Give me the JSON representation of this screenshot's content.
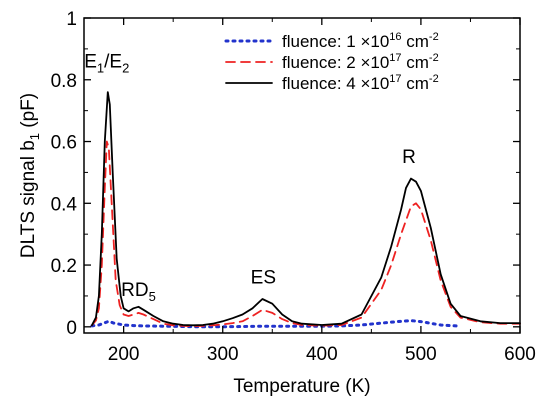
{
  "chart_data": {
    "type": "line",
    "title": "",
    "xlabel": "Temperature (K)",
    "ylabel": "DLTS signal b",
    "ylabel_sub": "1",
    "ylabel_unit": " (pF)",
    "xlim": [
      160,
      600
    ],
    "ylim": [
      -0.02,
      1.0
    ],
    "xticks": [
      200,
      300,
      400,
      500,
      600
    ],
    "yticks": [
      0,
      0.2,
      0.4,
      0.6,
      0.8,
      1
    ],
    "ytick_labels": [
      "0",
      "0.2",
      "0.4",
      "0.6",
      "0.8",
      "1"
    ],
    "xtick_labels": [
      "200",
      "300",
      "400",
      "500",
      "600"
    ],
    "grid": false,
    "legend_position": "top-right",
    "series": [
      {
        "name": "fluence: 1 ×10",
        "name_sup": "16",
        "name_unit": " cm",
        "name_unit_sup": "-2",
        "color": "#2233cc",
        "style": "dotted",
        "x": [
          168,
          175,
          180,
          185,
          190,
          200,
          210,
          220,
          240,
          260,
          280,
          300,
          320,
          340,
          360,
          380,
          400,
          420,
          440,
          460,
          480,
          490,
          500,
          520,
          540
        ],
        "y": [
          0.003,
          0.006,
          0.012,
          0.018,
          0.012,
          0.006,
          0.004,
          0.003,
          0.002,
          0.001,
          0.0,
          0.0,
          0.001,
          0.002,
          0.002,
          0.002,
          0.002,
          0.003,
          0.006,
          0.012,
          0.018,
          0.02,
          0.017,
          0.006,
          0.002
        ]
      },
      {
        "name": "fluence: 2 ×10",
        "name_sup": "17",
        "name_unit": " cm",
        "name_unit_sup": "-2",
        "color": "#ee2222",
        "style": "dashed",
        "x": [
          168,
          172,
          175,
          178,
          181,
          183,
          185,
          188,
          192,
          196,
          200,
          205,
          210,
          215,
          220,
          230,
          240,
          250,
          260,
          270,
          280,
          290,
          300,
          310,
          320,
          330,
          340,
          350,
          360,
          370,
          380,
          400,
          420,
          440,
          460,
          470,
          480,
          490,
          495,
          500,
          510,
          520,
          530,
          540,
          560,
          580,
          600
        ],
        "y": [
          0.005,
          0.02,
          0.06,
          0.2,
          0.45,
          0.6,
          0.58,
          0.4,
          0.15,
          0.07,
          0.04,
          0.035,
          0.04,
          0.045,
          0.04,
          0.025,
          0.01,
          0.005,
          0.003,
          0.002,
          0.003,
          0.005,
          0.008,
          0.012,
          0.018,
          0.035,
          0.055,
          0.045,
          0.025,
          0.012,
          0.006,
          0.004,
          0.006,
          0.03,
          0.12,
          0.2,
          0.3,
          0.39,
          0.4,
          0.38,
          0.28,
          0.15,
          0.065,
          0.03,
          0.015,
          0.01,
          0.01
        ]
      },
      {
        "name": "fluence: 4 ×10",
        "name_sup": "17",
        "name_unit": " cm",
        "name_unit_sup": "-2",
        "color": "#000000",
        "style": "solid",
        "x": [
          168,
          172,
          175,
          178,
          181,
          184,
          186,
          189,
          193,
          197,
          200,
          205,
          210,
          215,
          220,
          230,
          240,
          250,
          260,
          270,
          280,
          290,
          300,
          310,
          320,
          330,
          340,
          350,
          360,
          370,
          380,
          400,
          420,
          440,
          460,
          470,
          480,
          485,
          490,
          495,
          500,
          510,
          520,
          530,
          540,
          560,
          580,
          600
        ],
        "y": [
          0.005,
          0.03,
          0.1,
          0.3,
          0.6,
          0.76,
          0.72,
          0.5,
          0.22,
          0.1,
          0.06,
          0.05,
          0.06,
          0.065,
          0.055,
          0.035,
          0.018,
          0.01,
          0.006,
          0.005,
          0.006,
          0.01,
          0.018,
          0.028,
          0.04,
          0.06,
          0.09,
          0.075,
          0.04,
          0.018,
          0.01,
          0.006,
          0.01,
          0.04,
          0.16,
          0.26,
          0.38,
          0.45,
          0.48,
          0.47,
          0.44,
          0.32,
          0.17,
          0.075,
          0.035,
          0.018,
          0.012,
          0.012
        ]
      }
    ],
    "annotations": [
      {
        "text": "E",
        "sub": "1",
        "rest": "/E",
        "sub2": "2",
        "x": 183,
        "y": 0.84
      },
      {
        "text": "RD",
        "sub": "5",
        "x": 215,
        "y": 0.1
      },
      {
        "text": "ES",
        "x": 341,
        "y": 0.14
      },
      {
        "text": "R",
        "x": 488,
        "y": 0.53
      }
    ]
  }
}
